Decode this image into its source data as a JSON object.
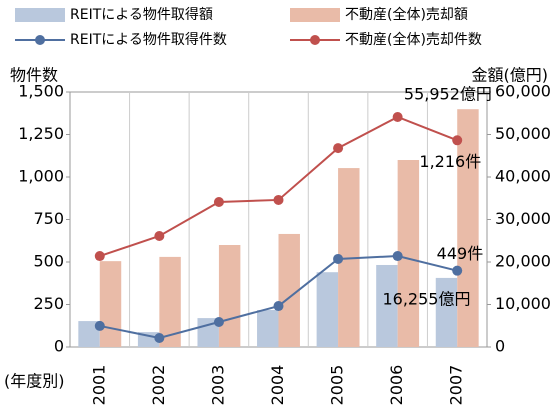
{
  "chart_data": {
    "type": "bar_line",
    "categories": [
      "2001",
      "2002",
      "2003",
      "2004",
      "2005",
      "2006",
      "2007"
    ],
    "x_label": "(年度別)",
    "y_label": "物件数",
    "y2_label": "金額(億円)",
    "series": [
      {
        "name": "REITによる物件取得額",
        "type": "bar",
        "axis": "y2",
        "color": "#b9c8dd",
        "values": [
          6100,
          3500,
          6800,
          8700,
          17600,
          19300,
          16255
        ],
        "value_labels": [
          null,
          null,
          null,
          null,
          null,
          null,
          "16,255億円"
        ]
      },
      {
        "name": "不動産(全体)売却額",
        "type": "bar",
        "axis": "y2",
        "color": "#e9bba8",
        "values": [
          20200,
          21200,
          24000,
          26600,
          42100,
          44000,
          55952
        ],
        "value_labels": [
          null,
          null,
          null,
          null,
          null,
          null,
          "55,952億円"
        ]
      },
      {
        "name": "REITによる物件取得件数",
        "type": "line",
        "axis": "y",
        "color": "#4f6fa0",
        "values": [
          124,
          53,
          147,
          241,
          518,
          535,
          449
        ],
        "value_labels": [
          null,
          null,
          null,
          null,
          null,
          null,
          "449件"
        ]
      },
      {
        "name": "不動産(全体)売却件数",
        "type": "line",
        "axis": "y",
        "color": "#c0504d",
        "values": [
          535,
          653,
          853,
          865,
          1170,
          1353,
          1216
        ],
        "value_labels": [
          null,
          null,
          null,
          null,
          null,
          null,
          "1,216件"
        ]
      }
    ],
    "ylim": [
      0,
      1500
    ],
    "yticks": [
      0,
      250,
      500,
      750,
      {
        "value": 1000,
        "label": "1,000"
      },
      {
        "value": 1250,
        "label": "1,250"
      },
      {
        "value": 1500,
        "label": "1,500"
      }
    ],
    "y2lim": [
      0,
      60000
    ],
    "y2ticks": [
      0,
      {
        "value": 10000,
        "label": "10,000"
      },
      {
        "value": 20000,
        "label": "20,000"
      },
      {
        "value": 30000,
        "label": "30,000"
      },
      {
        "value": 40000,
        "label": "40,000"
      },
      {
        "value": 50000,
        "label": "50,000"
      },
      {
        "value": 60000,
        "label": "60,000"
      }
    ]
  }
}
